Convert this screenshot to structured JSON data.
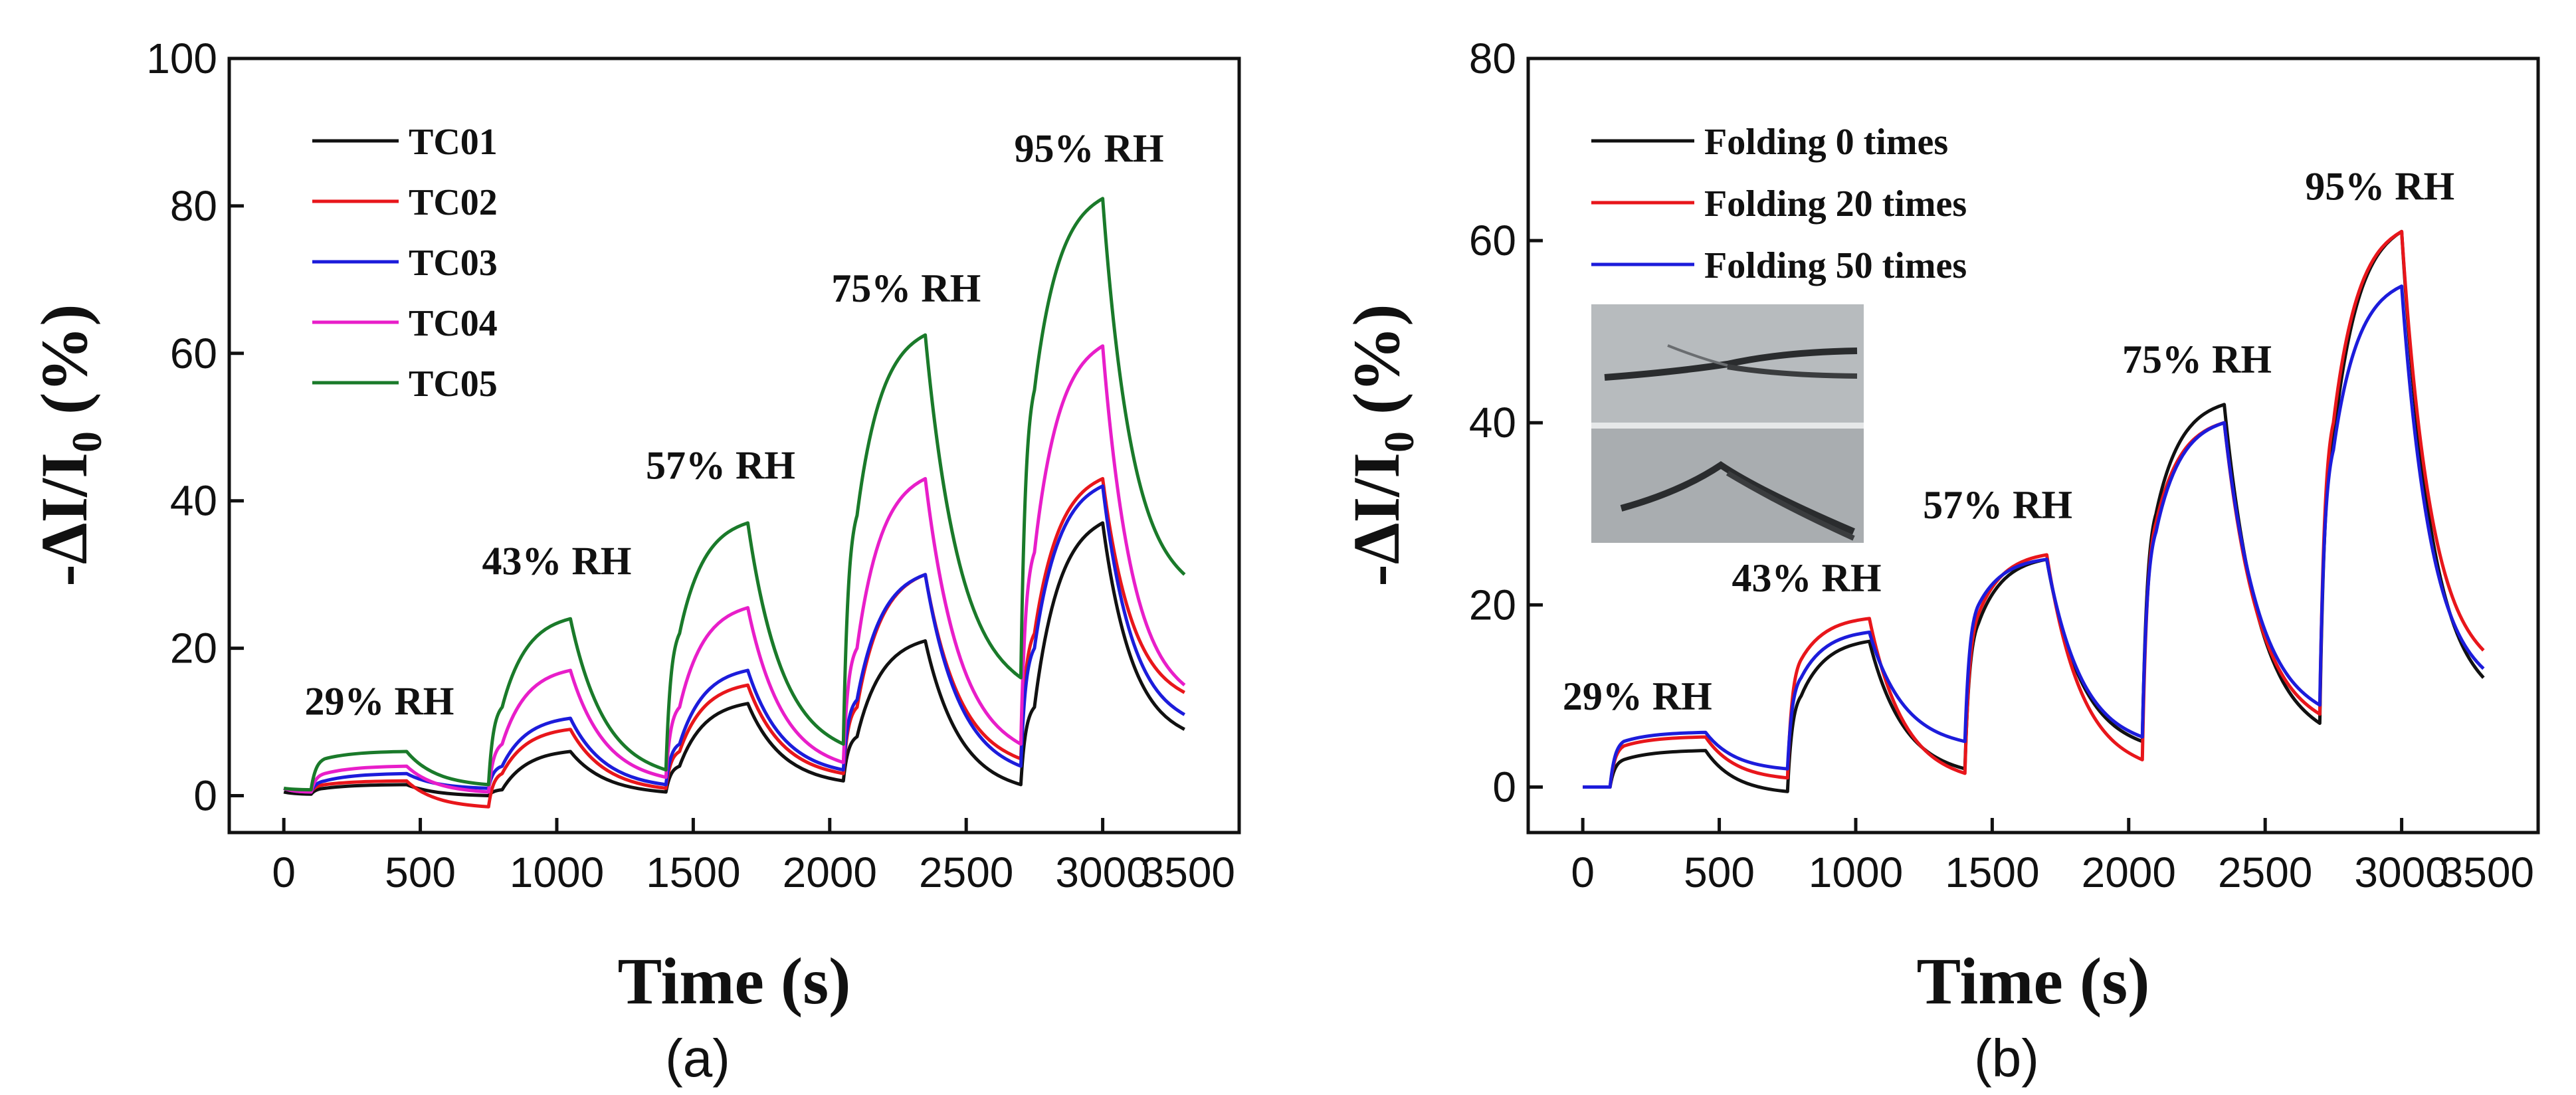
{
  "chart_data": [
    {
      "type": "line",
      "panel_label": "(a)",
      "xlabel": "Time (s)",
      "ylabel": "-ΔI/I",
      "ylabel_sub": "0",
      "ylabel_tail": " (%)",
      "xlim": [
        -200,
        3500
      ],
      "ylim": [
        -5,
        100
      ],
      "xticks": [
        0,
        500,
        1000,
        1500,
        2000,
        2500,
        3000,
        3500
      ],
      "xtick_labels": [
        "0",
        "500",
        "1000",
        "1500",
        "2000",
        "2500",
        "3000",
        "3500"
      ],
      "yticks": [
        0,
        20,
        40,
        60,
        80,
        100
      ],
      "ytick_labels": [
        "0",
        "20",
        "40",
        "60",
        "80",
        "100"
      ],
      "legend": [
        "TC01",
        "TC02",
        "TC03",
        "TC04",
        "TC05"
      ],
      "series": [
        {
          "name": "TC01",
          "color": "#111111",
          "values": [
            [
              0,
              0.5
            ],
            [
              100,
              0.2
            ],
            [
              150,
              1.0
            ],
            [
              450,
              1.5
            ],
            [
              750,
              0.0
            ],
            [
              800,
              0.8
            ],
            [
              1050,
              6.0
            ],
            [
              1400,
              0.5
            ],
            [
              1450,
              4.0
            ],
            [
              1700,
              12.5
            ],
            [
              2050,
              2.0
            ],
            [
              2100,
              8.0
            ],
            [
              2350,
              21.0
            ],
            [
              2700,
              1.5
            ],
            [
              2750,
              12.0
            ],
            [
              3000,
              37.0
            ],
            [
              3300,
              9.0
            ]
          ]
        },
        {
          "name": "TC02",
          "color": "#e8161b",
          "values": [
            [
              0,
              1.0
            ],
            [
              100,
              0.5
            ],
            [
              150,
              1.5
            ],
            [
              450,
              2.0
            ],
            [
              750,
              -1.5
            ],
            [
              800,
              3.0
            ],
            [
              1050,
              9.0
            ],
            [
              1400,
              1.0
            ],
            [
              1450,
              6.0
            ],
            [
              1700,
              15.0
            ],
            [
              2050,
              3.0
            ],
            [
              2100,
              12.0
            ],
            [
              2350,
              30.0
            ],
            [
              2700,
              5.0
            ],
            [
              2750,
              22.0
            ],
            [
              3000,
              43.0
            ],
            [
              3300,
              14.0
            ]
          ]
        },
        {
          "name": "TC03",
          "color": "#1c1cdb",
          "values": [
            [
              0,
              1.0
            ],
            [
              100,
              0.5
            ],
            [
              150,
              2.0
            ],
            [
              450,
              3.0
            ],
            [
              750,
              1.0
            ],
            [
              800,
              4.0
            ],
            [
              1050,
              10.5
            ],
            [
              1400,
              1.5
            ],
            [
              1450,
              7.0
            ],
            [
              1700,
              17.0
            ],
            [
              2050,
              3.5
            ],
            [
              2100,
              13.0
            ],
            [
              2350,
              30.0
            ],
            [
              2700,
              4.0
            ],
            [
              2750,
              20.0
            ],
            [
              3000,
              42.0
            ],
            [
              3300,
              11.0
            ]
          ]
        },
        {
          "name": "TC04",
          "color": "#e81ec9",
          "values": [
            [
              0,
              1.0
            ],
            [
              100,
              0.5
            ],
            [
              150,
              3.0
            ],
            [
              450,
              4.0
            ],
            [
              750,
              0.5
            ],
            [
              800,
              7.0
            ],
            [
              1050,
              17.0
            ],
            [
              1400,
              2.5
            ],
            [
              1450,
              12.0
            ],
            [
              1700,
              25.5
            ],
            [
              2050,
              4.5
            ],
            [
              2100,
              20.0
            ],
            [
              2350,
              43.0
            ],
            [
              2700,
              7.0
            ],
            [
              2750,
              33.0
            ],
            [
              3000,
              61.0
            ],
            [
              3300,
              15.0
            ]
          ]
        },
        {
          "name": "TC05",
          "color": "#1a7a2a",
          "values": [
            [
              0,
              1.0
            ],
            [
              100,
              0.8
            ],
            [
              150,
              5.0
            ],
            [
              450,
              6.0
            ],
            [
              750,
              1.5
            ],
            [
              800,
              12.0
            ],
            [
              1050,
              24.0
            ],
            [
              1400,
              3.5
            ],
            [
              1450,
              22.0
            ],
            [
              1700,
              37.0
            ],
            [
              2050,
              7.0
            ],
            [
              2100,
              38.0
            ],
            [
              2350,
              62.5
            ],
            [
              2700,
              16.0
            ],
            [
              2750,
              55.0
            ],
            [
              3000,
              81.0
            ],
            [
              3300,
              30.0
            ]
          ]
        }
      ],
      "annotations": [
        {
          "text": "29% RH",
          "x": 350,
          "y": 11
        },
        {
          "text": "43% RH",
          "x": 1000,
          "y": 30
        },
        {
          "text": "57% RH",
          "x": 1600,
          "y": 43
        },
        {
          "text": "75% RH",
          "x": 2280,
          "y": 67
        },
        {
          "text": "95% RH",
          "x": 2950,
          "y": 86
        }
      ]
    },
    {
      "type": "line",
      "panel_label": "(b)",
      "xlabel": "Time (s)",
      "ylabel": "-ΔI/I",
      "ylabel_sub": "0",
      "ylabel_tail": " (%)",
      "xlim": [
        -200,
        3500
      ],
      "ylim": [
        -5,
        80
      ],
      "xticks": [
        0,
        500,
        1000,
        1500,
        2000,
        2500,
        3000,
        3500
      ],
      "xtick_labels": [
        "0",
        "500",
        "1000",
        "1500",
        "2000",
        "2500",
        "3000",
        "3500"
      ],
      "yticks": [
        0,
        20,
        40,
        60,
        80
      ],
      "ytick_labels": [
        "0",
        "20",
        "40",
        "60",
        "80"
      ],
      "legend": [
        "Folding 0 times",
        "Folding 20 times",
        "Folding 50 times"
      ],
      "series": [
        {
          "name": "Folding 0 times",
          "color": "#111111",
          "values": [
            [
              0,
              0
            ],
            [
              100,
              0
            ],
            [
              150,
              3.0
            ],
            [
              450,
              4.0
            ],
            [
              750,
              -0.5
            ],
            [
              800,
              10.0
            ],
            [
              1050,
              16.0
            ],
            [
              1400,
              2.0
            ],
            [
              1450,
              18.0
            ],
            [
              1700,
              25.0
            ],
            [
              2050,
              5.0
            ],
            [
              2100,
              30.0
            ],
            [
              2350,
              42.0
            ],
            [
              2700,
              7.0
            ],
            [
              2750,
              38.0
            ],
            [
              3000,
              61.0
            ],
            [
              3300,
              12.0
            ]
          ]
        },
        {
          "name": "Folding 20 times",
          "color": "#e8161b",
          "values": [
            [
              0,
              0
            ],
            [
              100,
              0
            ],
            [
              150,
              4.5
            ],
            [
              450,
              5.5
            ],
            [
              750,
              1.0
            ],
            [
              800,
              14.0
            ],
            [
              1050,
              18.5
            ],
            [
              1400,
              1.5
            ],
            [
              1450,
              19.0
            ],
            [
              1700,
              25.5
            ],
            [
              2050,
              3.0
            ],
            [
              2100,
              29.0
            ],
            [
              2350,
              40.0
            ],
            [
              2700,
              8.0
            ],
            [
              2750,
              40.0
            ],
            [
              3000,
              61.0
            ],
            [
              3300,
              15.0
            ]
          ]
        },
        {
          "name": "Folding 50 times",
          "color": "#1c1cdb",
          "values": [
            [
              0,
              0
            ],
            [
              100,
              0
            ],
            [
              150,
              5.0
            ],
            [
              450,
              6.0
            ],
            [
              750,
              2.0
            ],
            [
              800,
              12.0
            ],
            [
              1050,
              17.0
            ],
            [
              1400,
              5.0
            ],
            [
              1450,
              20.0
            ],
            [
              1700,
              25.0
            ],
            [
              2050,
              5.5
            ],
            [
              2100,
              28.0
            ],
            [
              2350,
              40.0
            ],
            [
              2700,
              9.0
            ],
            [
              2750,
              37.0
            ],
            [
              3000,
              55.0
            ],
            [
              3300,
              13.0
            ]
          ]
        }
      ],
      "annotations": [
        {
          "text": "29% RH",
          "x": 200,
          "y": 8.5
        },
        {
          "text": "43% RH",
          "x": 820,
          "y": 21.5
        },
        {
          "text": "57% RH",
          "x": 1520,
          "y": 29.5
        },
        {
          "text": "75% RH",
          "x": 2250,
          "y": 45.5
        },
        {
          "text": "95% RH",
          "x": 2920,
          "y": 64.5
        }
      ]
    }
  ],
  "colors": {
    "inset_bg": "#aeb2b5",
    "inset_bg_light": "#d0d3d5"
  }
}
